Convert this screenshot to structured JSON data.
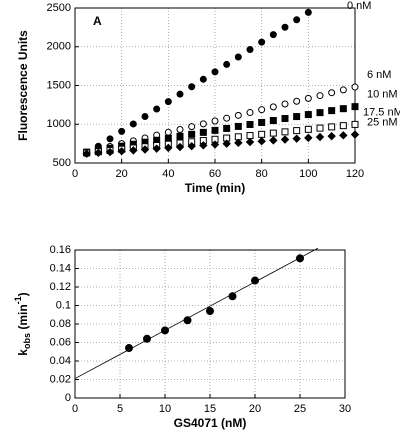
{
  "chart_data": [
    {
      "type": "line",
      "panel_label": "A",
      "xlabel": "Time  (min)",
      "ylabel": "Fluorescence Units",
      "xlim": [
        0,
        120
      ],
      "xticks": [
        0,
        20,
        40,
        60,
        80,
        100,
        120
      ],
      "ylim": [
        500,
        2500
      ],
      "yticks": [
        500,
        1000,
        1500,
        2000,
        2500
      ],
      "grid": true,
      "x": [
        5,
        10,
        15,
        20,
        25,
        30,
        35,
        40,
        45,
        50,
        55,
        60,
        65,
        70,
        75,
        80,
        85,
        90,
        95,
        100,
        105,
        110,
        115,
        120
      ],
      "series": [
        {
          "name": "0 nM",
          "color": "#000000",
          "marker": "circle",
          "filled": true,
          "values": [
            620,
            716,
            812,
            908,
            1004,
            1100,
            1196,
            1292,
            1388,
            1484,
            1580,
            1676,
            1772,
            1868,
            1964,
            2060,
            2156,
            2252,
            2348,
            2444,
            null,
            null,
            null,
            null
          ]
        },
        {
          "name": "6 nM",
          "color": "#000000",
          "marker": "circle",
          "filled": false,
          "values": [
            640,
            677,
            713,
            750,
            786,
            823,
            859,
            896,
            932,
            969,
            1005,
            1042,
            1078,
            1115,
            1151,
            1188,
            1224,
            1261,
            1297,
            1334,
            1370,
            1407,
            1443,
            1480
          ]
        },
        {
          "name": "10 nM",
          "color": "#000000",
          "marker": "square",
          "filled": true,
          "values": [
            640,
            666,
            691,
            717,
            742,
            768,
            793,
            819,
            844,
            870,
            895,
            921,
            946,
            972,
            997,
            1023,
            1048,
            1074,
            1099,
            1125,
            1150,
            1176,
            1201,
            1227
          ]
        },
        {
          "name": "17.5 nM",
          "color": "#000000",
          "marker": "square",
          "filled": false,
          "values": [
            630,
            646,
            662,
            678,
            694,
            710,
            726,
            742,
            758,
            774,
            790,
            806,
            822,
            838,
            854,
            870,
            886,
            902,
            918,
            934,
            950,
            966,
            982,
            998
          ]
        },
        {
          "name": "25 nM",
          "color": "#000000",
          "marker": "diamond",
          "filled": true,
          "values": [
            620,
            631,
            642,
            652,
            663,
            674,
            685,
            695,
            706,
            717,
            728,
            738,
            749,
            760,
            771,
            781,
            792,
            803,
            814,
            824,
            835,
            846,
            857,
            867
          ]
        }
      ]
    },
    {
      "type": "scatter",
      "xlabel": "GS4071  (nM)",
      "ylabel_parts": [
        "k",
        "obs",
        " (min",
        "-1",
        ")"
      ],
      "xlim": [
        0,
        30
      ],
      "xticks": [
        0,
        5,
        10,
        15,
        20,
        25,
        30
      ],
      "ylim": [
        0,
        0.16
      ],
      "yticks": [
        0,
        0.02,
        0.04,
        0.06,
        0.08,
        0.1,
        0.12,
        0.14,
        0.16
      ],
      "grid": true,
      "color": "#000000",
      "x": [
        6,
        8,
        10,
        12.5,
        15,
        17.5,
        20,
        25
      ],
      "values": [
        0.054,
        0.064,
        0.073,
        0.084,
        0.094,
        0.11,
        0.127,
        0.151
      ],
      "fit": {
        "x": [
          0,
          27
        ],
        "values": [
          0.021,
          0.162
        ]
      }
    }
  ]
}
